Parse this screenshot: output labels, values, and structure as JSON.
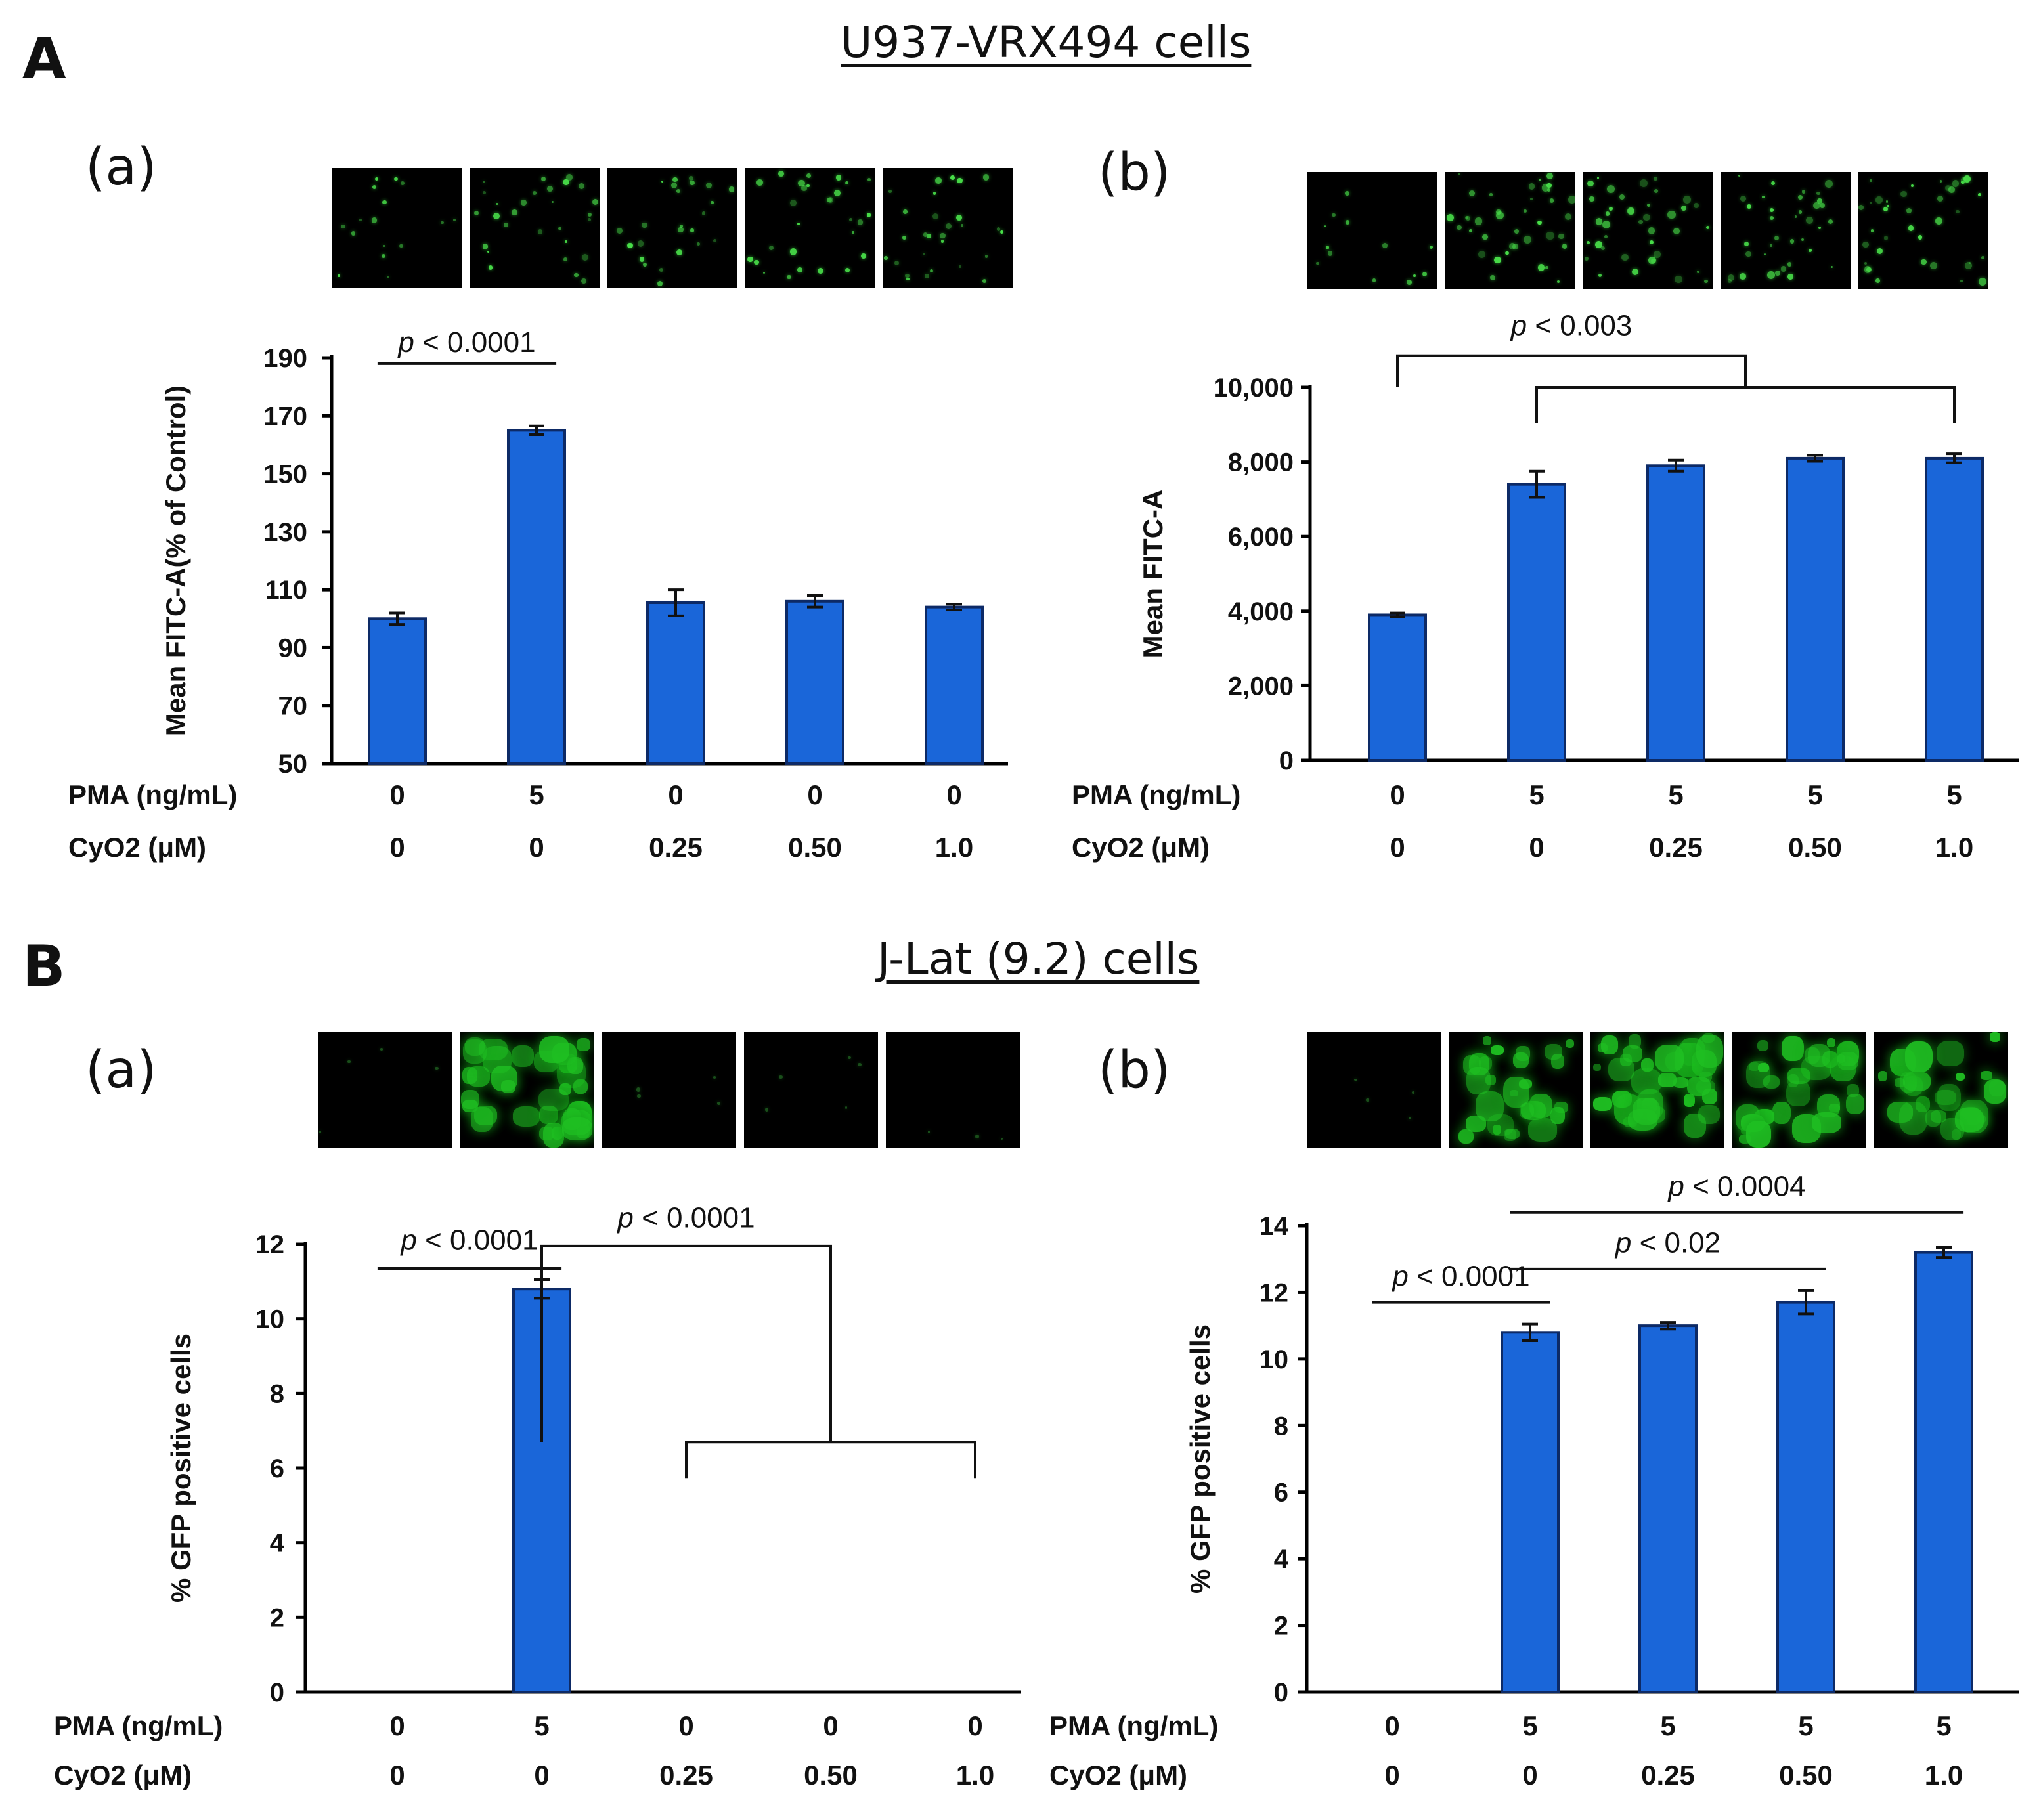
{
  "sections": [
    {
      "letter": "A",
      "title": "U937-VRX494 cells"
    },
    {
      "letter": "B",
      "title": "J-Lat (9.2) cells"
    }
  ],
  "bar_color": "#1a66d9",
  "row_label_pma": "PMA (ng/mL)",
  "row_label_cyo2": "CyO2 (μM)",
  "chart_data": [
    {
      "id": "Aa",
      "panel": "(a)",
      "type": "bar",
      "categories": [
        "0/0",
        "5/0",
        "0/0.25",
        "0/0.50",
        "0/1.0"
      ],
      "pma": [
        "0",
        "5",
        "0",
        "0",
        "0"
      ],
      "cyo2": [
        "0",
        "0",
        "0.25",
        "0.50",
        "1.0"
      ],
      "values": [
        100,
        165,
        105.5,
        106,
        104
      ],
      "errors": [
        2,
        1.5,
        4.5,
        2,
        1
      ],
      "ylabel": "Mean FITC-A(% of Control)",
      "ylim": [
        50,
        190
      ],
      "yticks": [
        50,
        70,
        90,
        110,
        130,
        150,
        170,
        190
      ],
      "ytick_labels": [
        "50",
        "70",
        "90",
        "110",
        "130",
        "150",
        "170",
        "190"
      ],
      "annotations": [
        {
          "p": "p",
          "text": " < 0.0001",
          "bracket": "line",
          "from": 0,
          "to": 1,
          "level": 188,
          "text_level": 192
        }
      ],
      "micro_style": "dots",
      "micro_intensity": [
        0.3,
        0.6,
        0.5,
        0.6,
        0.6
      ]
    },
    {
      "id": "Ab",
      "panel": "(b)",
      "type": "bar",
      "categories": [
        "0/0",
        "5/0",
        "5/0.25",
        "5/0.50",
        "5/1.0"
      ],
      "pma": [
        "0",
        "5",
        "5",
        "5",
        "5"
      ],
      "cyo2": [
        "0",
        "0",
        "0.25",
        "0.50",
        "1.0"
      ],
      "values": [
        3900,
        7400,
        7900,
        8100,
        8100
      ],
      "errors": [
        50,
        350,
        150,
        80,
        120
      ],
      "ylabel": "Mean FITC-A",
      "ylim": [
        0,
        10000
      ],
      "yticks": [
        0,
        2000,
        4000,
        6000,
        8000,
        10000
      ],
      "ytick_labels": [
        "0",
        "2,000",
        "4,000",
        "6,000",
        "8,000",
        "10,000"
      ],
      "annotations": [
        {
          "p": "p",
          "text": " < 0.003",
          "bracket": "group",
          "from": 0,
          "group": [
            1,
            4
          ],
          "level": 10000,
          "top": 10850,
          "text_level": 11400
        }
      ],
      "micro_style": "dots",
      "micro_intensity": [
        0.25,
        0.85,
        0.85,
        0.8,
        0.85
      ]
    },
    {
      "id": "Ba",
      "panel": "(a)",
      "type": "bar",
      "categories": [
        "0/0",
        "5/0",
        "0/0.25",
        "0/0.50",
        "0/1.0"
      ],
      "pma": [
        "0",
        "5",
        "0",
        "0",
        "0"
      ],
      "cyo2": [
        "0",
        "0",
        "0.25",
        "0.50",
        "1.0"
      ],
      "values": [
        0,
        10.8,
        0,
        0,
        0
      ],
      "errors": [
        0,
        0.25,
        0,
        0,
        0
      ],
      "ylabel": "% GFP positive cells",
      "ylim": [
        0,
        12
      ],
      "yticks": [
        0,
        2,
        4,
        6,
        8,
        10,
        12
      ],
      "ytick_labels": [
        "0",
        "2",
        "4",
        "6",
        "8",
        "10",
        "12"
      ],
      "annotations": [
        {
          "p": "p",
          "text": " < 0.0001",
          "bracket": "line",
          "from": 0,
          "to": 1,
          "level": 11.35,
          "text_level": 11.85
        },
        {
          "p": "p",
          "text": " < 0.0001",
          "bracket": "group",
          "from": 1,
          "group": [
            2,
            4
          ],
          "level": 6.7,
          "top": 11.95,
          "text_level": 12.45
        }
      ],
      "micro_style": "blobs",
      "micro_intensity": [
        0.05,
        0.9,
        0.05,
        0.08,
        0.03
      ]
    },
    {
      "id": "Bb",
      "panel": "(b)",
      "type": "bar",
      "categories": [
        "0/0",
        "5/0",
        "5/0.25",
        "5/0.50",
        "5/1.0"
      ],
      "pma": [
        "0",
        "5",
        "5",
        "5",
        "5"
      ],
      "cyo2": [
        "0",
        "0",
        "0.25",
        "0.50",
        "1.0"
      ],
      "values": [
        0,
        10.8,
        11,
        11.7,
        13.2
      ],
      "errors": [
        0,
        0.25,
        0.1,
        0.35,
        0.15
      ],
      "ylabel": "% GFP positive cells",
      "ylim": [
        0,
        14
      ],
      "yticks": [
        0,
        2,
        4,
        6,
        8,
        10,
        12,
        14
      ],
      "ytick_labels": [
        "0",
        "2",
        "4",
        "6",
        "8",
        "10",
        "12",
        "14"
      ],
      "annotations": [
        {
          "p": "p",
          "text": " < 0.0001",
          "bracket": "line",
          "from": 0,
          "to": 1,
          "level": 11.7,
          "text_level": 12.2
        },
        {
          "p": "p",
          "text": " < 0.02",
          "bracket": "line",
          "from": 1,
          "to": 3,
          "level": 12.7,
          "text_level": 13.2
        },
        {
          "p": "p",
          "text": " < 0.0004",
          "bracket": "line",
          "from": 1,
          "to": 4,
          "level": 14.4,
          "text_level": 14.9
        }
      ],
      "micro_style": "blobs",
      "micro_intensity": [
        0.05,
        0.75,
        0.95,
        0.85,
        0.7
      ]
    }
  ]
}
